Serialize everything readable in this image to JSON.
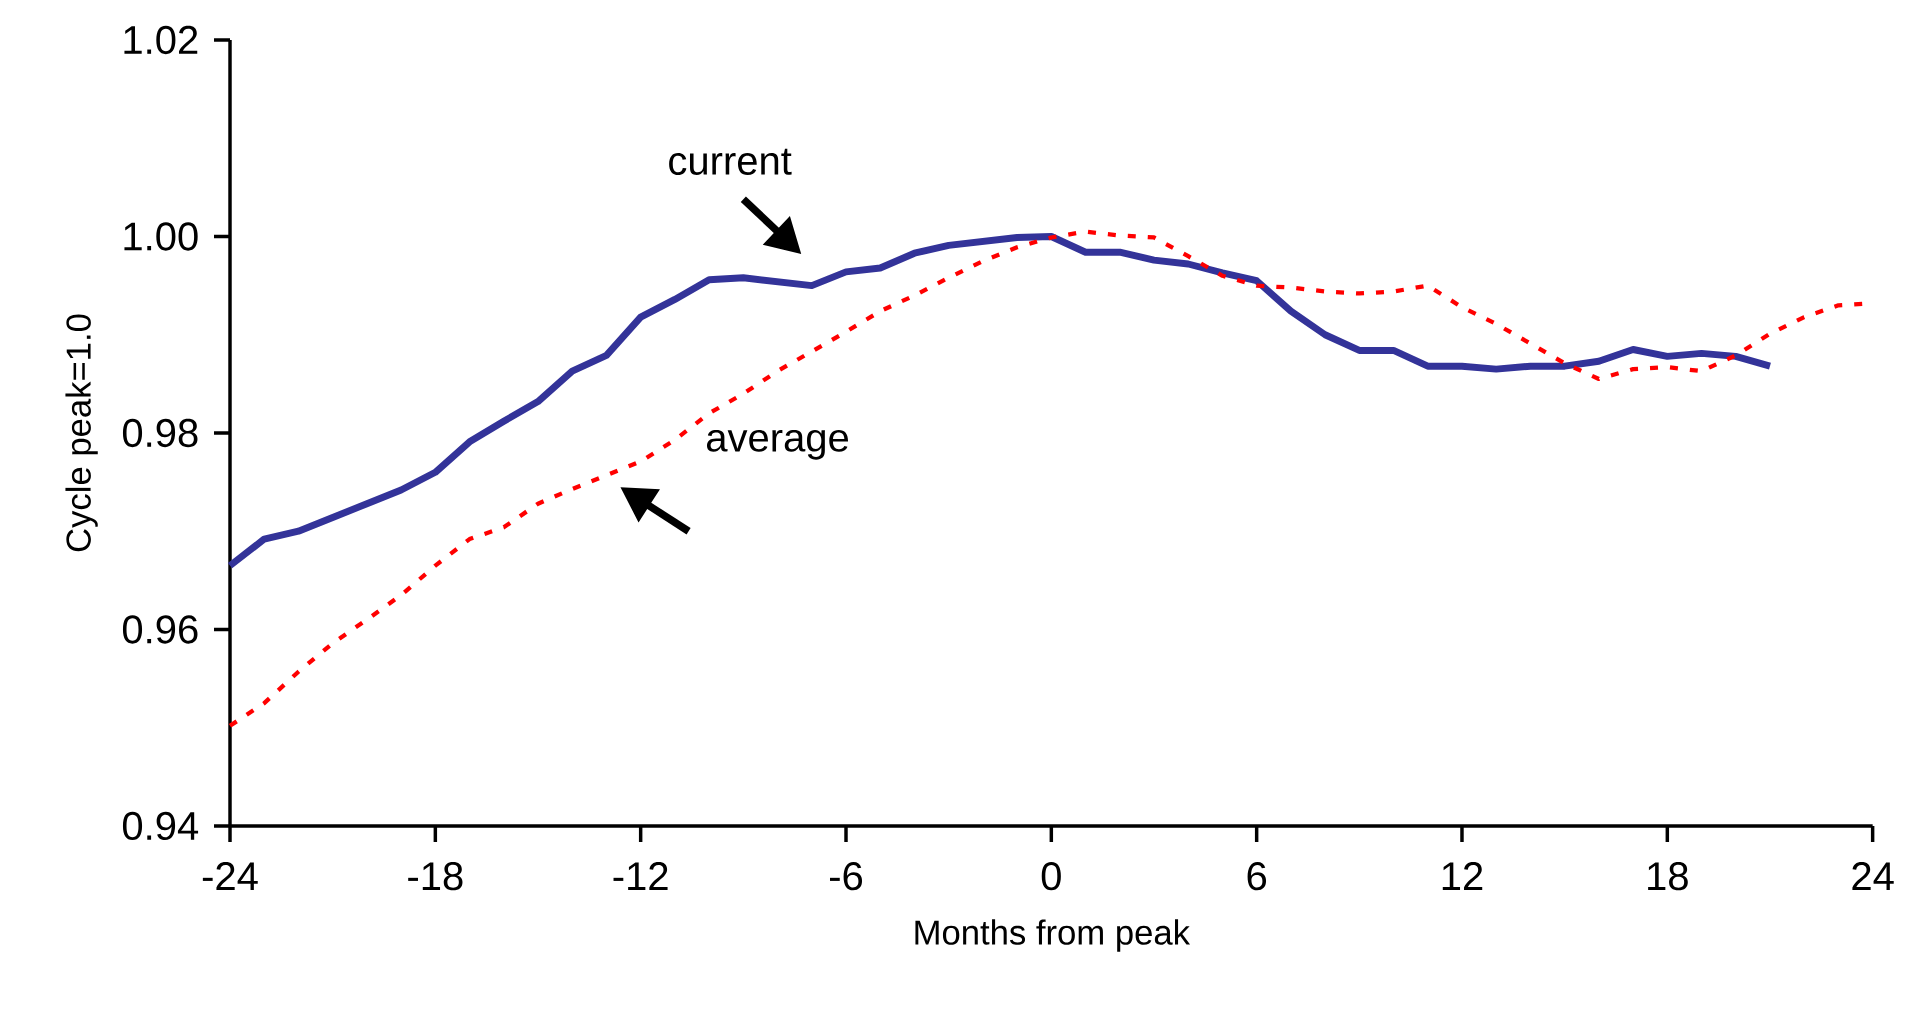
{
  "chart_data": {
    "type": "line",
    "xlabel": "Months from peak",
    "ylabel": "Cycle peak=1.0",
    "xlim": [
      -24,
      24
    ],
    "ylim": [
      0.94,
      1.02
    ],
    "xticks": [
      -24,
      -18,
      -12,
      -6,
      0,
      6,
      12,
      18,
      24
    ],
    "yticks": [
      {
        "value": 0.94,
        "label": "0.94"
      },
      {
        "value": 0.96,
        "label": "0.96"
      },
      {
        "value": 0.98,
        "label": "0.98"
      },
      {
        "value": 1.0,
        "label": "1.00"
      },
      {
        "value": 1.02,
        "label": "1.02"
      }
    ],
    "grid": false,
    "legend": false,
    "marker": "none",
    "series": [
      {
        "name": "current",
        "color": "#333399",
        "line_style": "solid",
        "x": [
          -24,
          -23,
          -22,
          -21,
          -20,
          -19,
          -18,
          -17,
          -16,
          -15,
          -14,
          -13,
          -12,
          -11,
          -10,
          -9,
          -8,
          -7,
          -6,
          -5,
          -4,
          -3,
          -2,
          -1,
          0,
          1,
          2,
          3,
          4,
          5,
          6,
          7,
          8,
          9,
          10,
          11,
          12,
          13,
          14,
          15,
          16,
          17,
          18,
          19,
          20,
          21
        ],
        "values": [
          0.9665,
          0.9692,
          0.97,
          0.9714,
          0.9728,
          0.9742,
          0.976,
          0.9791,
          0.9812,
          0.9832,
          0.9863,
          0.9879,
          0.9918,
          0.9936,
          0.9956,
          0.9958,
          0.9954,
          0.995,
          0.9964,
          0.9968,
          0.9983,
          0.9991,
          0.9995,
          0.9999,
          1.0,
          0.9984,
          0.9984,
          0.9976,
          0.9972,
          0.9963,
          0.9955,
          0.9924,
          0.99,
          0.9884,
          0.9884,
          0.9868,
          0.9868,
          0.9865,
          0.9868,
          0.9868,
          0.9873,
          0.9885,
          0.9878,
          0.9881,
          0.9878,
          0.9868
        ]
      },
      {
        "name": "average",
        "color": "#ff0000",
        "line_style": "dotted",
        "x": [
          -24,
          -23,
          -22,
          -21,
          -20,
          -19,
          -18,
          -17,
          -16,
          -15,
          -14,
          -13,
          -12,
          -11,
          -10,
          -9,
          -8,
          -7,
          -6,
          -5,
          -4,
          -3,
          -2,
          -1,
          0,
          1,
          2,
          3,
          4,
          5,
          6,
          7,
          8,
          9,
          10,
          11,
          12,
          13,
          14,
          15,
          16,
          17,
          18,
          19,
          20,
          21,
          22,
          23,
          24
        ],
        "values": [
          0.9502,
          0.9525,
          0.9557,
          0.9586,
          0.961,
          0.9635,
          0.9665,
          0.9692,
          0.9704,
          0.9728,
          0.9743,
          0.9757,
          0.9771,
          0.9793,
          0.982,
          0.984,
          0.9863,
          0.9883,
          0.9903,
          0.9924,
          0.994,
          0.9958,
          0.9975,
          0.9989,
          0.9999,
          1.0005,
          1.0001,
          0.9999,
          0.998,
          0.996,
          0.995,
          0.9948,
          0.9944,
          0.9942,
          0.9944,
          0.995,
          0.9928,
          0.9911,
          0.9891,
          0.9871,
          0.9855,
          0.9865,
          0.9867,
          0.9863,
          0.9879,
          0.9901,
          0.9918,
          0.993,
          0.9932
        ]
      }
    ]
  }
}
